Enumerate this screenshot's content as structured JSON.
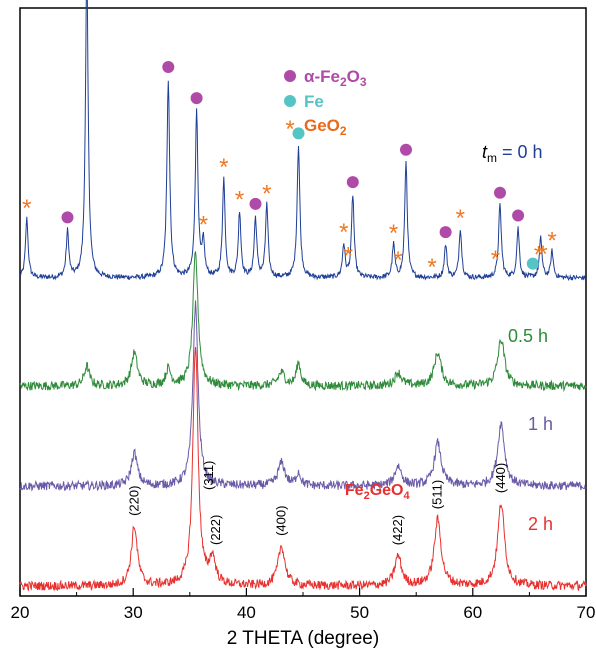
{
  "chart_data": {
    "type": "line",
    "xlabel": "2 THETA (degree)",
    "xlim": [
      20,
      70
    ],
    "xticks": [
      20,
      30,
      40,
      50,
      60,
      70
    ],
    "yaxis_visible": false,
    "legend": [
      {
        "marker": "circle",
        "color": "#b04aa8",
        "label": "α-Fe2O3",
        "label_prefix": "α-Fe",
        "sub1": "2",
        "mid": "O",
        "sub2": "3"
      },
      {
        "marker": "circle",
        "color": "#55c4c4",
        "label": "Fe"
      },
      {
        "marker": "asterisk",
        "color": "#f07820",
        "label": "GeO2",
        "label_prefix": "GeO",
        "sub1": "2"
      }
    ],
    "series": [
      {
        "name": "tm = 0 h",
        "label_t": "t",
        "label_sub": "m",
        "label_rest": " = 0 h",
        "color": "#1f3f96",
        "offset": 3.0,
        "peaks": [
          [
            20.6,
            0.18,
            0.15
          ],
          [
            24.2,
            0.14,
            0.15
          ],
          [
            25.9,
            0.92,
            0.16
          ],
          [
            33.1,
            0.6,
            0.16
          ],
          [
            35.6,
            0.5,
            0.16
          ],
          [
            36.2,
            0.1,
            0.15
          ],
          [
            38.0,
            0.3,
            0.15
          ],
          [
            39.4,
            0.2,
            0.15
          ],
          [
            40.8,
            0.18,
            0.15
          ],
          [
            41.8,
            0.22,
            0.15
          ],
          [
            44.6,
            0.4,
            0.16
          ],
          [
            48.6,
            0.1,
            0.15
          ],
          [
            49.4,
            0.25,
            0.15
          ],
          [
            53.0,
            0.1,
            0.15
          ],
          [
            54.1,
            0.35,
            0.15
          ],
          [
            57.6,
            0.1,
            0.15
          ],
          [
            58.9,
            0.15,
            0.15
          ],
          [
            62.4,
            0.22,
            0.16
          ],
          [
            64.0,
            0.15,
            0.15
          ],
          [
            66.0,
            0.12,
            0.15
          ],
          [
            67.0,
            0.08,
            0.15
          ]
        ]
      },
      {
        "name": "0.5 h",
        "color": "#2e8b3a",
        "offset": 2.0,
        "peaks": [
          [
            25.9,
            0.06,
            0.3
          ],
          [
            30.1,
            0.1,
            0.35
          ],
          [
            33.1,
            0.05,
            0.3
          ],
          [
            35.5,
            0.4,
            0.3
          ],
          [
            43.1,
            0.04,
            0.4
          ],
          [
            44.6,
            0.07,
            0.25
          ],
          [
            53.4,
            0.04,
            0.4
          ],
          [
            56.9,
            0.1,
            0.4
          ],
          [
            62.5,
            0.14,
            0.4
          ]
        ]
      },
      {
        "name": "1 h",
        "color": "#6a5aa8",
        "offset": 1.0,
        "peaks": [
          [
            30.1,
            0.1,
            0.35
          ],
          [
            35.5,
            0.55,
            0.3
          ],
          [
            43.1,
            0.07,
            0.4
          ],
          [
            53.4,
            0.06,
            0.4
          ],
          [
            56.9,
            0.13,
            0.4
          ],
          [
            62.5,
            0.19,
            0.4
          ],
          [
            44.6,
            0.04,
            0.25
          ]
        ]
      },
      {
        "name": "2 h",
        "color": "#e8312f",
        "offset": 0.0,
        "peaks": [
          [
            30.1,
            0.18,
            0.35
          ],
          [
            35.5,
            0.73,
            0.3
          ],
          [
            37.0,
            0.08,
            0.35
          ],
          [
            43.1,
            0.12,
            0.4
          ],
          [
            53.4,
            0.09,
            0.4
          ],
          [
            56.9,
            0.2,
            0.4
          ],
          [
            62.5,
            0.25,
            0.4
          ]
        ]
      }
    ],
    "alpha_fe2o3_markers": [
      24.2,
      33.1,
      35.6,
      40.8,
      49.4,
      54.1,
      57.6,
      62.4,
      64.0
    ],
    "fe_markers": [
      44.6,
      65.3
    ],
    "geo2_markers": [
      20.6,
      25.9,
      36.2,
      38.0,
      39.4,
      41.8,
      48.6,
      49.0,
      53.0,
      53.4,
      56.4,
      58.9,
      62.0,
      65.8,
      66.2,
      67.0
    ],
    "compound_label": {
      "prefix": "Fe",
      "sub1": "2",
      "mid": "GeO",
      "sub2": "4",
      "x": 48.7
    },
    "peak_labels": [
      {
        "text": "(220)",
        "x": 30.1
      },
      {
        "text": "(311)",
        "x": 36.7
      },
      {
        "text": "(222)",
        "x": 37.3
      },
      {
        "text": "(400)",
        "x": 43.1
      },
      {
        "text": "(422)",
        "x": 53.4
      },
      {
        "text": "(511)",
        "x": 56.9
      },
      {
        "text": "(440)",
        "x": 62.5
      }
    ]
  }
}
